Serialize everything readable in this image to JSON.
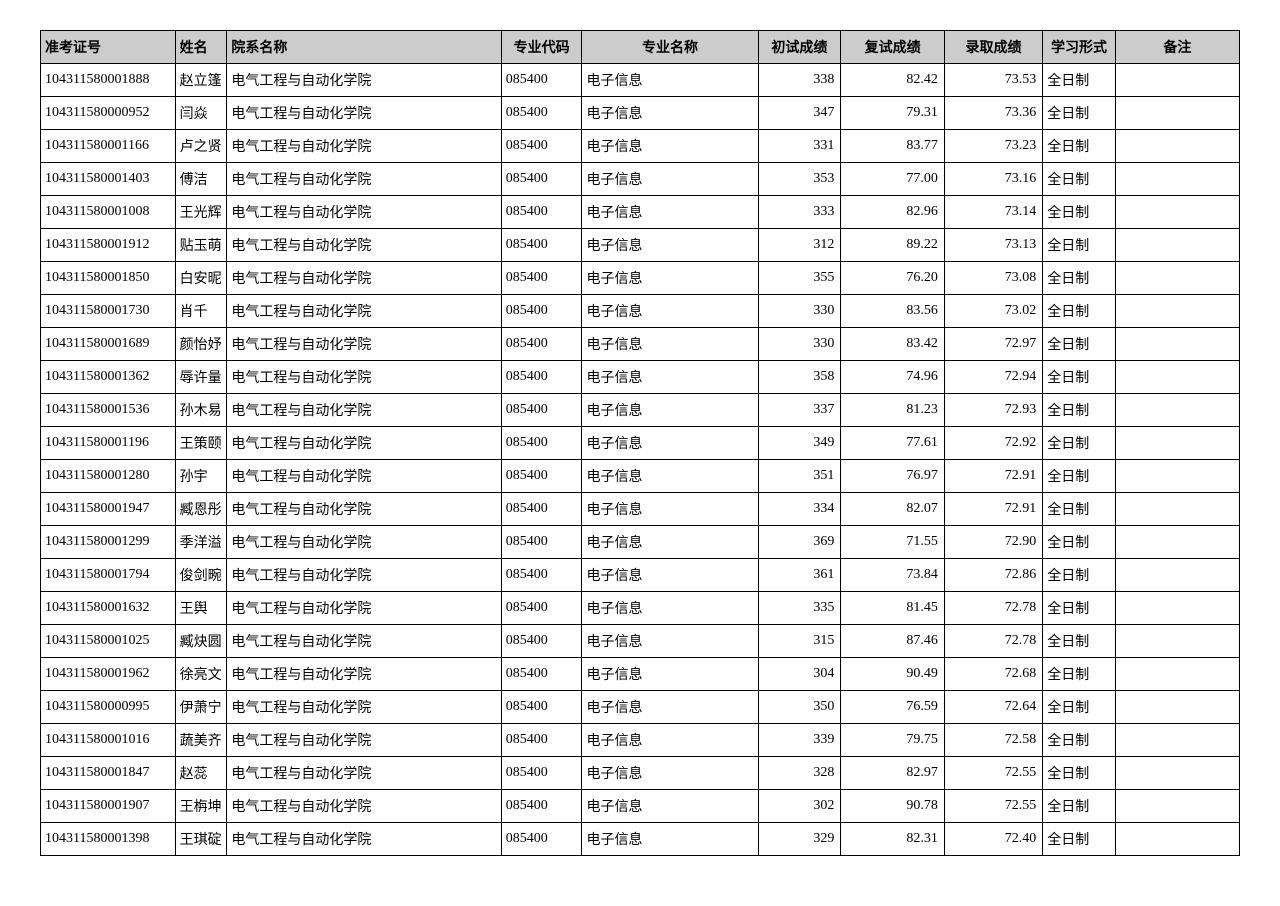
{
  "table": {
    "headers": {
      "id": "准考证号",
      "name": "姓名",
      "dept": "院系名称",
      "code": "专业代码",
      "major": "专业名称",
      "s1": "初试成绩",
      "s2": "复试成绩",
      "s3": "录取成绩",
      "mode": "学习形式",
      "note": "备注"
    },
    "rows": [
      {
        "id": "104311580001888",
        "name": "赵立篷",
        "dept": "电气工程与自动化学院",
        "code": "085400",
        "major": "电子信息",
        "s1": "338",
        "s2": "82.42",
        "s3": "73.53",
        "mode": "全日制",
        "note": ""
      },
      {
        "id": "104311580000952",
        "name": "闫焱",
        "dept": "电气工程与自动化学院",
        "code": "085400",
        "major": "电子信息",
        "s1": "347",
        "s2": "79.31",
        "s3": "73.36",
        "mode": "全日制",
        "note": ""
      },
      {
        "id": "104311580001166",
        "name": "卢之贤",
        "dept": "电气工程与自动化学院",
        "code": "085400",
        "major": "电子信息",
        "s1": "331",
        "s2": "83.77",
        "s3": "73.23",
        "mode": "全日制",
        "note": ""
      },
      {
        "id": "104311580001403",
        "name": "傅洁",
        "dept": "电气工程与自动化学院",
        "code": "085400",
        "major": "电子信息",
        "s1": "353",
        "s2": "77.00",
        "s3": "73.16",
        "mode": "全日制",
        "note": ""
      },
      {
        "id": "104311580001008",
        "name": "王光辉",
        "dept": "电气工程与自动化学院",
        "code": "085400",
        "major": "电子信息",
        "s1": "333",
        "s2": "82.96",
        "s3": "73.14",
        "mode": "全日制",
        "note": ""
      },
      {
        "id": "104311580001912",
        "name": "贴玉萌",
        "dept": "电气工程与自动化学院",
        "code": "085400",
        "major": "电子信息",
        "s1": "312",
        "s2": "89.22",
        "s3": "73.13",
        "mode": "全日制",
        "note": ""
      },
      {
        "id": "104311580001850",
        "name": "白安昵",
        "dept": "电气工程与自动化学院",
        "code": "085400",
        "major": "电子信息",
        "s1": "355",
        "s2": "76.20",
        "s3": "73.08",
        "mode": "全日制",
        "note": ""
      },
      {
        "id": "104311580001730",
        "name": "肖千",
        "dept": "电气工程与自动化学院",
        "code": "085400",
        "major": "电子信息",
        "s1": "330",
        "s2": "83.56",
        "s3": "73.02",
        "mode": "全日制",
        "note": ""
      },
      {
        "id": "104311580001689",
        "name": "颜怡妤",
        "dept": "电气工程与自动化学院",
        "code": "085400",
        "major": "电子信息",
        "s1": "330",
        "s2": "83.42",
        "s3": "72.97",
        "mode": "全日制",
        "note": ""
      },
      {
        "id": "104311580001362",
        "name": "辱许量",
        "dept": "电气工程与自动化学院",
        "code": "085400",
        "major": "电子信息",
        "s1": "358",
        "s2": "74.96",
        "s3": "72.94",
        "mode": "全日制",
        "note": ""
      },
      {
        "id": "104311580001536",
        "name": "孙木易",
        "dept": "电气工程与自动化学院",
        "code": "085400",
        "major": "电子信息",
        "s1": "337",
        "s2": "81.23",
        "s3": "72.93",
        "mode": "全日制",
        "note": ""
      },
      {
        "id": "104311580001196",
        "name": "王策颐",
        "dept": "电气工程与自动化学院",
        "code": "085400",
        "major": "电子信息",
        "s1": "349",
        "s2": "77.61",
        "s3": "72.92",
        "mode": "全日制",
        "note": ""
      },
      {
        "id": "104311580001280",
        "name": "孙宇",
        "dept": "电气工程与自动化学院",
        "code": "085400",
        "major": "电子信息",
        "s1": "351",
        "s2": "76.97",
        "s3": "72.91",
        "mode": "全日制",
        "note": ""
      },
      {
        "id": "104311580001947",
        "name": "臧恩彤",
        "dept": "电气工程与自动化学院",
        "code": "085400",
        "major": "电子信息",
        "s1": "334",
        "s2": "82.07",
        "s3": "72.91",
        "mode": "全日制",
        "note": ""
      },
      {
        "id": "104311580001299",
        "name": "季洋溢",
        "dept": "电气工程与自动化学院",
        "code": "085400",
        "major": "电子信息",
        "s1": "369",
        "s2": "71.55",
        "s3": "72.90",
        "mode": "全日制",
        "note": ""
      },
      {
        "id": "104311580001794",
        "name": "俊剑畹",
        "dept": "电气工程与自动化学院",
        "code": "085400",
        "major": "电子信息",
        "s1": "361",
        "s2": "73.84",
        "s3": "72.86",
        "mode": "全日制",
        "note": ""
      },
      {
        "id": "104311580001632",
        "name": "王舆",
        "dept": "电气工程与自动化学院",
        "code": "085400",
        "major": "电子信息",
        "s1": "335",
        "s2": "81.45",
        "s3": "72.78",
        "mode": "全日制",
        "note": ""
      },
      {
        "id": "104311580001025",
        "name": "臧炔圆",
        "dept": "电气工程与自动化学院",
        "code": "085400",
        "major": "电子信息",
        "s1": "315",
        "s2": "87.46",
        "s3": "72.78",
        "mode": "全日制",
        "note": ""
      },
      {
        "id": "104311580001962",
        "name": "徐亮文",
        "dept": "电气工程与自动化学院",
        "code": "085400",
        "major": "电子信息",
        "s1": "304",
        "s2": "90.49",
        "s3": "72.68",
        "mode": "全日制",
        "note": ""
      },
      {
        "id": "104311580000995",
        "name": "伊萧宁",
        "dept": "电气工程与自动化学院",
        "code": "085400",
        "major": "电子信息",
        "s1": "350",
        "s2": "76.59",
        "s3": "72.64",
        "mode": "全日制",
        "note": ""
      },
      {
        "id": "104311580001016",
        "name": "蔬美齐",
        "dept": "电气工程与自动化学院",
        "code": "085400",
        "major": "电子信息",
        "s1": "339",
        "s2": "79.75",
        "s3": "72.58",
        "mode": "全日制",
        "note": ""
      },
      {
        "id": "104311580001847",
        "name": "赵蕊",
        "dept": "电气工程与自动化学院",
        "code": "085400",
        "major": "电子信息",
        "s1": "328",
        "s2": "82.97",
        "s3": "72.55",
        "mode": "全日制",
        "note": ""
      },
      {
        "id": "104311580001907",
        "name": "王栴坤",
        "dept": "电气工程与自动化学院",
        "code": "085400",
        "major": "电子信息",
        "s1": "302",
        "s2": "90.78",
        "s3": "72.55",
        "mode": "全日制",
        "note": ""
      },
      {
        "id": "104311580001398",
        "name": "王琪碇",
        "dept": "电气工程与自动化学院",
        "code": "085400",
        "major": "电子信息",
        "s1": "329",
        "s2": "82.31",
        "s3": "72.40",
        "mode": "全日制",
        "note": ""
      }
    ]
  }
}
